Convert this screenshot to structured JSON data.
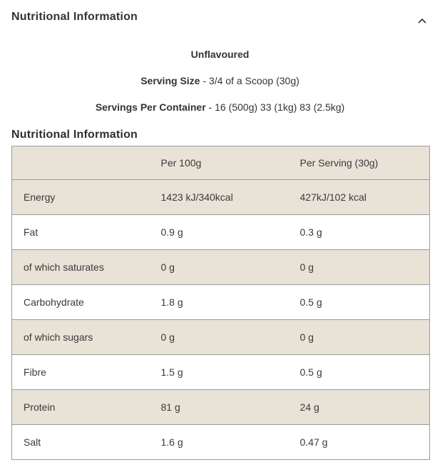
{
  "accordion": {
    "title": "Nutritional Information"
  },
  "intro": {
    "flavour": "Unflavoured",
    "serving_size_label": "Serving Size",
    "serving_size_value": " - 3/4 of a Scoop (30g)",
    "servings_label": "Servings Per Container",
    "servings_value": " - 16 (500g) 33 (1kg) 83 (2.5kg)"
  },
  "table_section": {
    "heading": "Nutritional Information",
    "columns": [
      "",
      "Per 100g",
      "Per Serving (30g)"
    ],
    "rows": [
      {
        "label": "Energy",
        "per100": "1423 kJ/340kcal",
        "perServing": "427kJ/102 kcal"
      },
      {
        "label": "Fat",
        "per100": "0.9 g",
        "perServing": "0.3 g"
      },
      {
        "label": "of which saturates",
        "per100": "0 g",
        "perServing": "0 g"
      },
      {
        "label": "Carbohydrate",
        "per100": "1.8 g",
        "perServing": "0.5 g"
      },
      {
        "label": "of which sugars",
        "per100": "0 g",
        "perServing": "0 g"
      },
      {
        "label": "Fibre",
        "per100": "1.5 g",
        "perServing": "0.5 g"
      },
      {
        "label": "Protein",
        "per100": "81 g",
        "perServing": "24 g"
      },
      {
        "label": "Salt",
        "per100": "1.6 g",
        "perServing": "0.47 g"
      }
    ]
  },
  "colors": {
    "row_shaded": "#e8e2d7",
    "table_border": "#9b9b9b",
    "text": "#333333"
  }
}
